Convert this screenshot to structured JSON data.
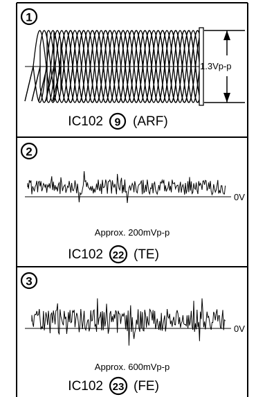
{
  "panels": [
    {
      "number": "1",
      "amplitude_label": "1.3Vp-p",
      "caption": {
        "ic": "IC102",
        "pin": "9",
        "signal": "(ARF)"
      }
    },
    {
      "number": "2",
      "reference_label": "0V",
      "amplitude_note": "Approx. 200mVp-p",
      "caption": {
        "ic": "IC102",
        "pin": "22",
        "signal": "(TE)"
      }
    },
    {
      "number": "3",
      "reference_label": "0V",
      "amplitude_note": "Approx. 600mVp-p",
      "caption": {
        "ic": "IC102",
        "pin": "23",
        "signal": "(FE)"
      }
    }
  ]
}
